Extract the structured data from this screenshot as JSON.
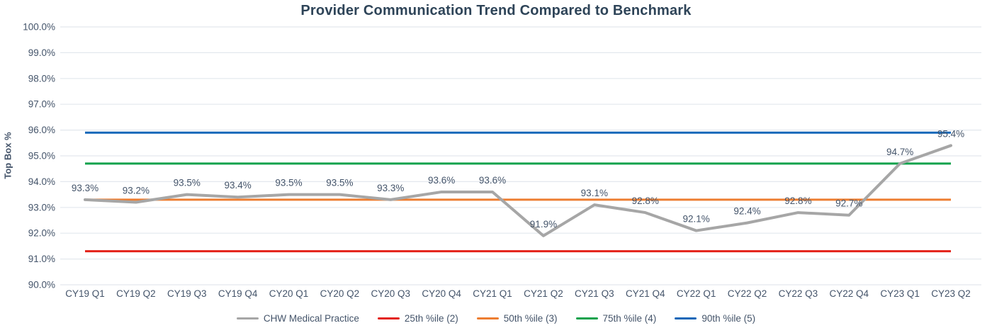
{
  "chart_data": {
    "type": "line",
    "title": "Provider Communication Trend Compared to Benchmark",
    "xlabel": "",
    "ylabel": "Top Box %",
    "ylim": [
      90,
      100
    ],
    "ytick_step": 1,
    "ytick_format": "one-decimal-percent",
    "grid": true,
    "legend_position": "bottom",
    "categories": [
      "CY19 Q1",
      "CY19 Q2",
      "CY19 Q3",
      "CY19 Q4",
      "CY20 Q1",
      "CY20 Q2",
      "CY20 Q3",
      "CY20 Q4",
      "CY21 Q1",
      "CY21 Q2",
      "CY21 Q3",
      "CY21 Q4",
      "CY22 Q1",
      "CY22 Q2",
      "CY22 Q3",
      "CY22 Q4",
      "CY23 Q1",
      "CY23 Q2"
    ],
    "series": [
      {
        "name": "CHW Medical Practice",
        "kind": "line",
        "color": "#a6a6a6",
        "values": [
          93.3,
          93.2,
          93.5,
          93.4,
          93.5,
          93.5,
          93.3,
          93.6,
          93.6,
          91.9,
          93.1,
          92.8,
          92.1,
          92.4,
          92.8,
          92.7,
          94.7,
          95.4
        ],
        "data_labels": [
          "93.3%",
          "93.2%",
          "93.5%",
          "93.4%",
          "93.5%",
          "93.5%",
          "93.3%",
          "93.6%",
          "93.6%",
          "91.9%",
          "93.1%",
          "92.8%",
          "92.1%",
          "92.4%",
          "92.8%",
          "92.7%",
          "94.7%",
          "95.4%"
        ]
      },
      {
        "name": "25th %ile (2)",
        "kind": "benchmark",
        "color": "#e32219",
        "value": 91.3
      },
      {
        "name": "50th %ile (3)",
        "kind": "benchmark",
        "color": "#ed7d31",
        "value": 93.3
      },
      {
        "name": "75th %ile (4)",
        "kind": "benchmark",
        "color": "#10a24c",
        "value": 94.7
      },
      {
        "name": "90th %ile (5)",
        "kind": "benchmark",
        "color": "#1467b8",
        "value": 95.9
      }
    ],
    "colors": {
      "text": "#44546a",
      "title": "#2e4458",
      "grid": "#e3e8ee"
    }
  }
}
